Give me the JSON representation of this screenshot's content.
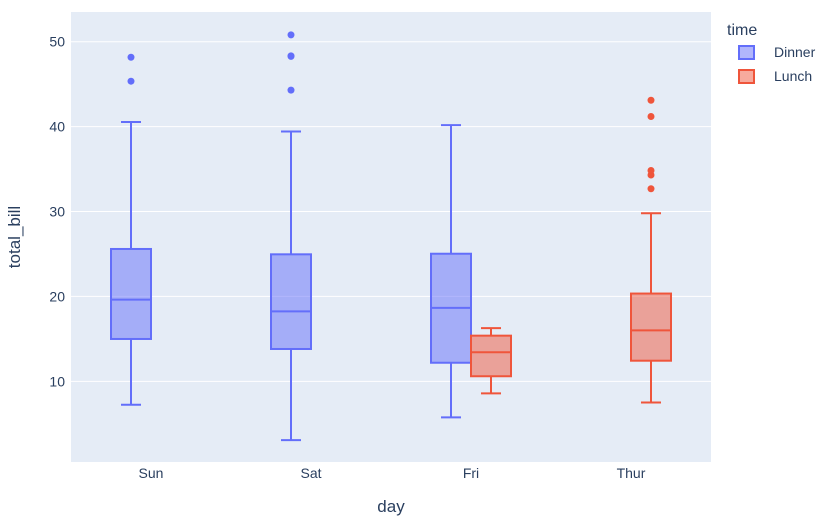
{
  "chart_data": {
    "type": "box",
    "title": "",
    "xlabel": "day",
    "ylabel": "total_bill",
    "categories": [
      "Sun",
      "Sat",
      "Fri",
      "Thur"
    ],
    "ylim": [
      0.5,
      53.5
    ],
    "yticks": [
      10,
      20,
      30,
      40,
      50
    ],
    "grid": true,
    "boxmode": "group",
    "legend": {
      "title": "time",
      "placement": "top-right, outside plot"
    },
    "plot_background": "#e5ecf6",
    "series": [
      {
        "name": "Dinner",
        "color": "#636efa",
        "boxes": [
          {
            "category": "Sun",
            "lower_whisker": 7.25,
            "q1": 14.99,
            "median": 19.63,
            "q3": 25.59,
            "upper_whisker": 40.55,
            "outliers": [
              45.35,
              48.17
            ]
          },
          {
            "category": "Sat",
            "lower_whisker": 3.07,
            "q1": 13.81,
            "median": 18.24,
            "q3": 24.96,
            "upper_whisker": 39.42,
            "outliers": [
              44.3,
              48.27,
              48.33,
              50.81
            ]
          },
          {
            "category": "Fri",
            "lower_whisker": 5.75,
            "q1": 12.19,
            "median": 18.65,
            "q3": 25.03,
            "upper_whisker": 40.17,
            "outliers": []
          }
        ]
      },
      {
        "name": "Lunch",
        "color": "#ef553b",
        "boxes": [
          {
            "category": "Fri",
            "lower_whisker": 8.58,
            "q1": 10.6,
            "median": 13.42,
            "q3": 15.38,
            "upper_whisker": 16.27,
            "outliers": []
          },
          {
            "category": "Thur",
            "lower_whisker": 7.51,
            "q1": 12.43,
            "median": 16.0,
            "q3": 20.34,
            "upper_whisker": 29.8,
            "outliers": [
              32.68,
              34.3,
              34.83,
              41.19,
              43.11
            ]
          }
        ]
      }
    ]
  }
}
